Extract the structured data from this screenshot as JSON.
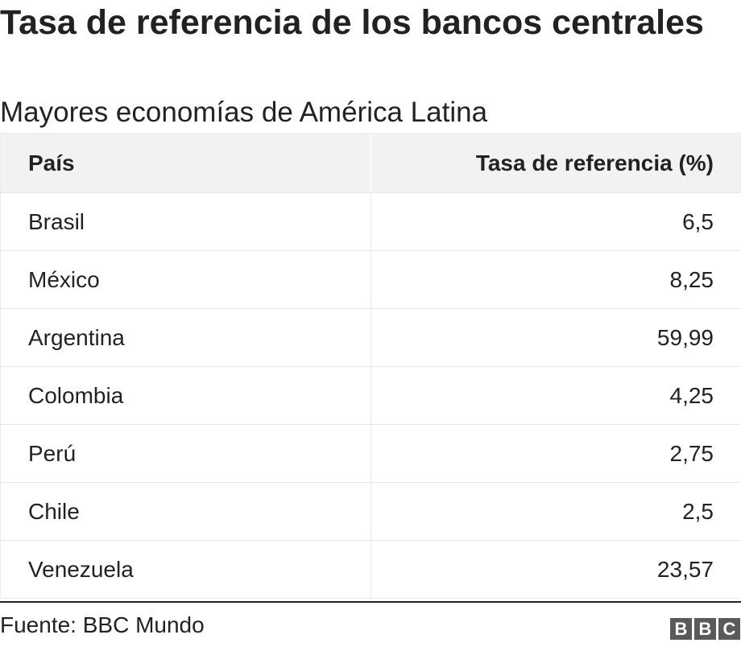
{
  "chart_data": {
    "type": "table",
    "title": "Tasa de referencia de los bancos centrales",
    "subtitle": "Mayores economías de América Latina",
    "columns": [
      "País",
      "Tasa de referencia (%)"
    ],
    "rows": [
      {
        "country": "Brasil",
        "rate": "6,5"
      },
      {
        "country": "México",
        "rate": "8,25"
      },
      {
        "country": "Argentina",
        "rate": "59,99"
      },
      {
        "country": "Colombia",
        "rate": "4,25"
      },
      {
        "country": "Perú",
        "rate": "2,75"
      },
      {
        "country": "Chile",
        "rate": "2,5"
      },
      {
        "country": "Venezuela",
        "rate": "23,57"
      }
    ],
    "source": "Fuente: BBC Mundo"
  },
  "logo": {
    "letters": [
      "B",
      "B",
      "C"
    ],
    "color": "#5a5a5a"
  }
}
